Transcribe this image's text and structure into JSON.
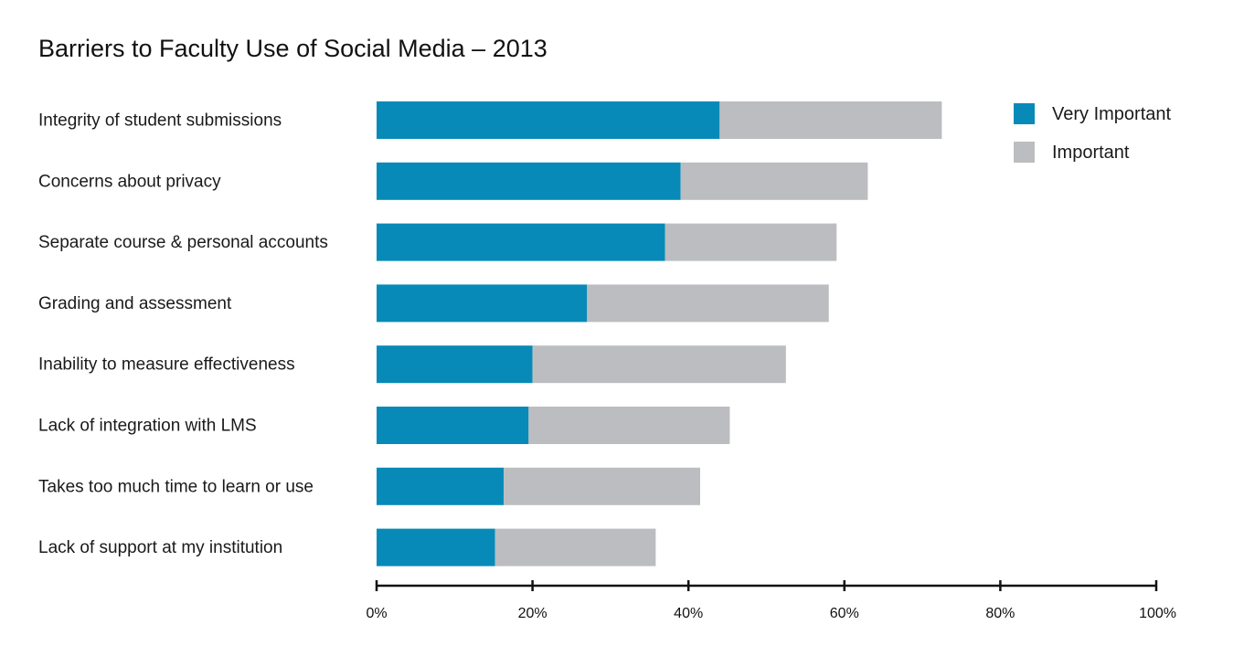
{
  "chart_data": {
    "type": "bar",
    "orientation": "horizontal",
    "stacked": true,
    "title": "Barriers to Faculty Use of Social Media – 2013",
    "xlabel": "",
    "ylabel": "",
    "xlim": [
      0,
      100
    ],
    "x_ticks": [
      0,
      20,
      40,
      60,
      80,
      100
    ],
    "x_tick_labels": [
      "0%",
      "20%",
      "40%",
      "60%",
      "80%",
      "100%"
    ],
    "categories": [
      "Integrity of student submissions",
      "Concerns about privacy",
      "Separate course & personal accounts",
      "Grading and assessment",
      "Inability to measure effectiveness",
      "Lack of integration with LMS",
      "Takes too much time to learn or use",
      "Lack of support at my institution"
    ],
    "series": [
      {
        "name": "Very Important",
        "color": "#078ab8",
        "values": [
          44,
          39,
          37,
          27,
          20,
          19.5,
          16.3,
          15.2
        ]
      },
      {
        "name": "Important",
        "color": "#bcbdc0",
        "values": [
          28.5,
          24,
          22,
          31,
          32.5,
          25.8,
          25.2,
          20.6
        ]
      }
    ],
    "grid": false,
    "legend_position": "top-right"
  }
}
